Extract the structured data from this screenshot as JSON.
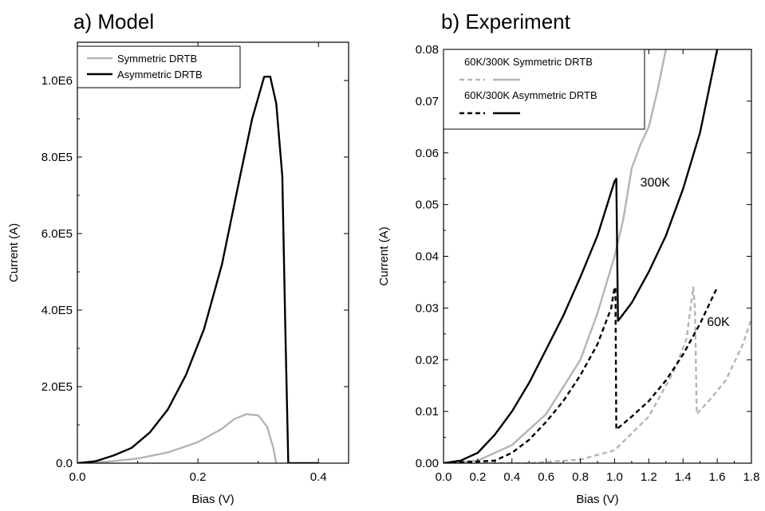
{
  "chart_data": [
    {
      "panel_title": "a) Model",
      "type": "line",
      "xlabel": "Bias (V)",
      "ylabel": "Current (A)",
      "xlim": [
        0,
        0.45
      ],
      "ylim": [
        0,
        1100000
      ],
      "xticks": [
        {
          "v": 0,
          "label": "0.0"
        },
        {
          "v": 0.2,
          "label": "0.2"
        },
        {
          "v": 0.4,
          "label": "0.4"
        }
      ],
      "yticks": [
        {
          "v": 0,
          "label": "0.0"
        },
        {
          "v": 200000,
          "label": "2.0E5"
        },
        {
          "v": 400000,
          "label": "4.0E5"
        },
        {
          "v": 600000,
          "label": "6.0E5"
        },
        {
          "v": 800000,
          "label": "8.0E5"
        },
        {
          "v": 1000000,
          "label": "1.0E6"
        }
      ],
      "legend_position": "top-left",
      "series": [
        {
          "name": "Symmetric DRTB",
          "color": "#b4b4b4",
          "dash": "solid",
          "points": [
            [
              0,
              0
            ],
            [
              0.05,
              4000
            ],
            [
              0.1,
              12000
            ],
            [
              0.15,
              28000
            ],
            [
              0.2,
              55000
            ],
            [
              0.24,
              90000
            ],
            [
              0.26,
              115000
            ],
            [
              0.28,
              128000
            ],
            [
              0.3,
              125000
            ],
            [
              0.315,
              95000
            ],
            [
              0.325,
              40000
            ],
            [
              0.33,
              0
            ]
          ]
        },
        {
          "name": "Asymmetric DRTB",
          "color": "#000000",
          "dash": "solid",
          "points": [
            [
              0,
              0
            ],
            [
              0.03,
              5000
            ],
            [
              0.06,
              20000
            ],
            [
              0.09,
              40000
            ],
            [
              0.12,
              80000
            ],
            [
              0.15,
              140000
            ],
            [
              0.18,
              230000
            ],
            [
              0.21,
              350000
            ],
            [
              0.24,
              520000
            ],
            [
              0.27,
              750000
            ],
            [
              0.29,
              900000
            ],
            [
              0.31,
              1010000
            ],
            [
              0.32,
              1010000
            ],
            [
              0.33,
              940000
            ],
            [
              0.34,
              750000
            ],
            [
              0.345,
              350000
            ],
            [
              0.35,
              0
            ],
            [
              0.4,
              0
            ]
          ]
        }
      ]
    },
    {
      "panel_title": "b) Experiment",
      "type": "line",
      "xlabel": "Bias (V)",
      "ylabel": "Current (A)",
      "xlim": [
        0,
        1.8
      ],
      "ylim": [
        0,
        0.08
      ],
      "xticks": [
        {
          "v": 0,
          "label": "0.0"
        },
        {
          "v": 0.2,
          "label": "0.2"
        },
        {
          "v": 0.4,
          "label": "0.4"
        },
        {
          "v": 0.6,
          "label": "0.6"
        },
        {
          "v": 0.8,
          "label": "0.8"
        },
        {
          "v": 1.0,
          "label": "1.0"
        },
        {
          "v": 1.2,
          "label": "1.2"
        },
        {
          "v": 1.4,
          "label": "1.4"
        },
        {
          "v": 1.6,
          "label": "1.6"
        },
        {
          "v": 1.8,
          "label": "1.8"
        }
      ],
      "yticks": [
        {
          "v": 0,
          "label": "0.00"
        },
        {
          "v": 0.01,
          "label": "0.01"
        },
        {
          "v": 0.02,
          "label": "0.02"
        },
        {
          "v": 0.03,
          "label": "0.03"
        },
        {
          "v": 0.04,
          "label": "0.04"
        },
        {
          "v": 0.05,
          "label": "0.05"
        },
        {
          "v": 0.06,
          "label": "0.06"
        },
        {
          "v": 0.07,
          "label": "0.07"
        },
        {
          "v": 0.08,
          "label": "0.08"
        }
      ],
      "legend_position": "top-left",
      "legend_entries": [
        {
          "label": "60K/300K Symmetric DRTB",
          "color": "#b4b4b4"
        },
        {
          "label": "60K/300K Asymmetric DRTB",
          "color": "#000000"
        }
      ],
      "annotations": [
        {
          "text": "300K",
          "x": 1.15,
          "y": 0.0535
        },
        {
          "text": "60K",
          "x": 1.54,
          "y": 0.0265
        }
      ],
      "series": [
        {
          "name": "60K Symmetric DRTB",
          "color": "#b4b4b4",
          "dash": "dashed",
          "points": [
            [
              0,
              0
            ],
            [
              0.5,
              0
            ],
            [
              0.8,
              0.0007
            ],
            [
              1.0,
              0.0025
            ],
            [
              1.2,
              0.009
            ],
            [
              1.35,
              0.018
            ],
            [
              1.42,
              0.024
            ],
            [
              1.46,
              0.034
            ],
            [
              1.47,
              0.03
            ],
            [
              1.48,
              0.0095
            ],
            [
              1.55,
              0.012
            ],
            [
              1.65,
              0.016
            ],
            [
              1.75,
              0.023
            ],
            [
              1.8,
              0.028
            ]
          ]
        },
        {
          "name": "300K Symmetric DRTB",
          "color": "#b4b4b4",
          "dash": "solid",
          "points": [
            [
              0,
              0
            ],
            [
              0.2,
              0.0005
            ],
            [
              0.4,
              0.0035
            ],
            [
              0.6,
              0.0095
            ],
            [
              0.8,
              0.02
            ],
            [
              0.9,
              0.029
            ],
            [
              1.0,
              0.04
            ],
            [
              1.05,
              0.047
            ],
            [
              1.1,
              0.057
            ],
            [
              1.15,
              0.0615
            ],
            [
              1.2,
              0.065
            ],
            [
              1.25,
              0.072
            ],
            [
              1.3,
              0.08
            ]
          ]
        },
        {
          "name": "60K Asymmetric DRTB",
          "color": "#000000",
          "dash": "dashed",
          "points": [
            [
              0,
              0
            ],
            [
              0.3,
              0.0005
            ],
            [
              0.4,
              0.002
            ],
            [
              0.5,
              0.0045
            ],
            [
              0.6,
              0.008
            ],
            [
              0.7,
              0.012
            ],
            [
              0.8,
              0.017
            ],
            [
              0.9,
              0.023
            ],
            [
              0.98,
              0.03
            ],
            [
              1.0,
              0.034
            ],
            [
              1.005,
              0.034
            ],
            [
              1.01,
              0.0065
            ],
            [
              1.1,
              0.009
            ],
            [
              1.2,
              0.012
            ],
            [
              1.3,
              0.016
            ],
            [
              1.4,
              0.021
            ],
            [
              1.5,
              0.027
            ],
            [
              1.6,
              0.034
            ]
          ]
        },
        {
          "name": "300K Asymmetric DRTB",
          "color": "#000000",
          "dash": "solid",
          "points": [
            [
              0,
              0
            ],
            [
              0.1,
              0.0005
            ],
            [
              0.2,
              0.002
            ],
            [
              0.3,
              0.0055
            ],
            [
              0.4,
              0.01
            ],
            [
              0.5,
              0.0155
            ],
            [
              0.6,
              0.022
            ],
            [
              0.7,
              0.0285
            ],
            [
              0.8,
              0.036
            ],
            [
              0.9,
              0.044
            ],
            [
              1.0,
              0.0545
            ],
            [
              1.01,
              0.055
            ],
            [
              1.02,
              0.0275
            ],
            [
              1.1,
              0.031
            ],
            [
              1.2,
              0.037
            ],
            [
              1.3,
              0.044
            ],
            [
              1.4,
              0.053
            ],
            [
              1.5,
              0.064
            ],
            [
              1.6,
              0.08
            ]
          ]
        }
      ]
    }
  ]
}
